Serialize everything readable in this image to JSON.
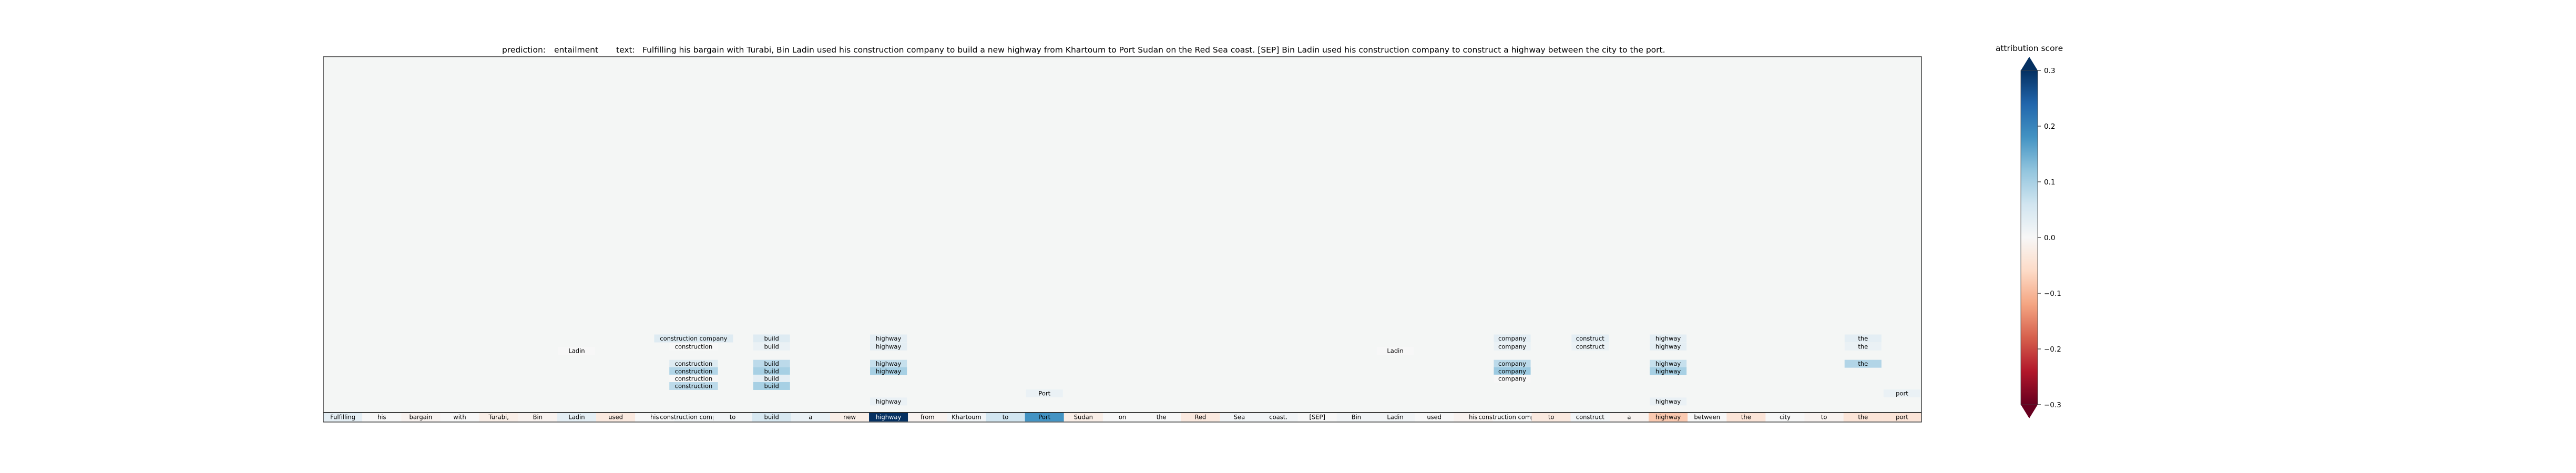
{
  "header": {
    "prediction_label": "prediction:",
    "prediction_value": "entailment",
    "text_label": "text:",
    "text_value": "Fulfilling his bargain with Turabi, Bin Ladin used his construction company to build a new highway from Khartoum to Port Sudan on the Red Sea coast. [SEP] Bin Ladin used his construction company to construct a highway between the city to the port."
  },
  "colorbar": {
    "title": "attribution score",
    "ticks": [
      "0.3",
      "0.2",
      "0.1",
      "0.0",
      "−0.1",
      "−0.2",
      "−0.3"
    ],
    "range": [
      -0.3,
      0.3
    ],
    "colors": [
      "#67001f",
      "#b2182b",
      "#d6604d",
      "#f4a582",
      "#fddbc7",
      "#f7f7f7",
      "#d1e5f0",
      "#92c5de",
      "#4393c3",
      "#2166ac",
      "#053061"
    ]
  },
  "chart_data": {
    "type": "heatmap",
    "tokens": [
      {
        "text": "Fulfilling",
        "score": 0.03
      },
      {
        "text": "his",
        "score": 0.0
      },
      {
        "text": "bargain",
        "score": -0.01
      },
      {
        "text": "with",
        "score": 0.0
      },
      {
        "text": "Turabi,",
        "score": -0.02
      },
      {
        "text": "Bin",
        "score": -0.01
      },
      {
        "text": "Ladin",
        "score": 0.03
      },
      {
        "text": "used",
        "score": -0.03
      },
      {
        "text": "his",
        "score": 0.0
      },
      {
        "text": "construction company",
        "score": 0.01
      },
      {
        "text": "to",
        "score": 0.01
      },
      {
        "text": "build",
        "score": 0.05
      },
      {
        "text": "a",
        "score": 0.02
      },
      {
        "text": "new",
        "score": -0.02
      },
      {
        "text": "highway",
        "score": 0.3
      },
      {
        "text": "from",
        "score": -0.01
      },
      {
        "text": "Khartoum",
        "score": 0.01
      },
      {
        "text": "to",
        "score": 0.06
      },
      {
        "text": "Port",
        "score": 0.18
      },
      {
        "text": "Sudan",
        "score": -0.02
      },
      {
        "text": "on",
        "score": 0.0
      },
      {
        "text": "the",
        "score": 0.0
      },
      {
        "text": "Red",
        "score": -0.03
      },
      {
        "text": "Sea",
        "score": 0.01
      },
      {
        "text": "coast.",
        "score": 0.01
      },
      {
        "text": "[SEP]",
        "score": 0.0
      },
      {
        "text": "Bin",
        "score": 0.01
      },
      {
        "text": "Ladin",
        "score": 0.01
      },
      {
        "text": "used",
        "score": 0.0
      },
      {
        "text": "his",
        "score": -0.01
      },
      {
        "text": "construction company",
        "score": 0.0
      },
      {
        "text": "to",
        "score": -0.03
      },
      {
        "text": "construct",
        "score": 0.01
      },
      {
        "text": "a",
        "score": -0.01
      },
      {
        "text": "highway",
        "score": -0.08
      },
      {
        "text": "between",
        "score": 0.0
      },
      {
        "text": "the",
        "score": -0.04
      },
      {
        "text": "city",
        "score": 0.0
      },
      {
        "text": "to",
        "score": -0.01
      },
      {
        "text": "the",
        "score": -0.04
      },
      {
        "text": "port",
        "score": -0.04
      }
    ],
    "alignments": [
      {
        "tok": 6,
        "text": "Ladin",
        "level": 5,
        "score": 0.0
      },
      {
        "tok": 9,
        "text": "construction company",
        "level": 6,
        "score": 0.04
      },
      {
        "tok": 9,
        "text": "construction",
        "level": 5.35,
        "score": 0.0
      },
      {
        "tok": 9,
        "text": "construction",
        "level": 3.95,
        "score": 0.04
      },
      {
        "tok": 9,
        "text": "construction",
        "level": 3.35,
        "score": 0.09
      },
      {
        "tok": 9,
        "text": "construction",
        "level": 2.75,
        "score": 0.0
      },
      {
        "tok": 9,
        "text": "construction",
        "level": 2.15,
        "score": 0.08
      },
      {
        "tok": 11,
        "text": "build",
        "level": 6,
        "score": 0.04
      },
      {
        "tok": 11,
        "text": "build",
        "level": 5.35,
        "score": 0.02
      },
      {
        "tok": 11,
        "text": "build",
        "level": 3.95,
        "score": 0.08
      },
      {
        "tok": 11,
        "text": "build",
        "level": 3.35,
        "score": 0.1
      },
      {
        "tok": 11,
        "text": "build",
        "level": 2.75,
        "score": 0.03
      },
      {
        "tok": 11,
        "text": "build",
        "level": 2.15,
        "score": 0.1
      },
      {
        "tok": 14,
        "text": "highway",
        "level": 6,
        "score": 0.03
      },
      {
        "tok": 14,
        "text": "highway",
        "level": 5.35,
        "score": 0.03
      },
      {
        "tok": 14,
        "text": "highway",
        "level": 3.95,
        "score": 0.07
      },
      {
        "tok": 14,
        "text": "highway",
        "level": 3.35,
        "score": 0.1
      },
      {
        "tok": 14,
        "text": "highway",
        "level": 0.9,
        "score": 0.02
      },
      {
        "tok": 18,
        "text": "Port",
        "level": 1.55,
        "score": 0.02
      },
      {
        "tok": 27,
        "text": "Ladin",
        "level": 5,
        "score": 0.0
      },
      {
        "tok": 30,
        "text": "company",
        "level": 6,
        "score": 0.03
      },
      {
        "tok": 30,
        "text": "company",
        "level": 5.35,
        "score": 0.02
      },
      {
        "tok": 30,
        "text": "company",
        "level": 3.95,
        "score": 0.08
      },
      {
        "tok": 30,
        "text": "company",
        "level": 3.35,
        "score": 0.11
      },
      {
        "tok": 30,
        "text": "company",
        "level": 2.75,
        "score": 0.0
      },
      {
        "tok": 32,
        "text": "construct",
        "level": 6,
        "score": 0.03
      },
      {
        "tok": 32,
        "text": "construct",
        "level": 5.35,
        "score": 0.02
      },
      {
        "tok": 34,
        "text": "highway",
        "level": 6,
        "score": 0.03
      },
      {
        "tok": 34,
        "text": "highway",
        "level": 5.35,
        "score": 0.03
      },
      {
        "tok": 34,
        "text": "highway",
        "level": 3.95,
        "score": 0.07
      },
      {
        "tok": 34,
        "text": "highway",
        "level": 3.35,
        "score": 0.1
      },
      {
        "tok": 34,
        "text": "highway",
        "level": 0.9,
        "score": 0.02
      },
      {
        "tok": 39,
        "text": "the",
        "level": 6,
        "score": 0.03
      },
      {
        "tok": 39,
        "text": "the",
        "level": 5.35,
        "score": 0.02
      },
      {
        "tok": 39,
        "text": "the",
        "level": 3.95,
        "score": 0.09
      },
      {
        "tok": 40,
        "text": "port",
        "level": 1.55,
        "score": 0.02
      }
    ]
  }
}
